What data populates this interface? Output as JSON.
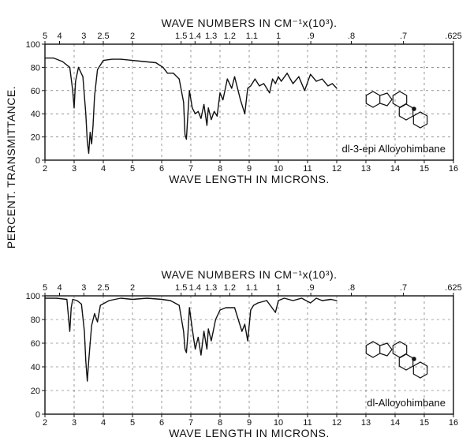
{
  "shared_ylabel": "PERCENT. TRANSMITTANCE.",
  "chart_data": [
    {
      "type": "line",
      "title": "WAVE NUMBERS IN CM⁻¹x(10³).",
      "xlabel": "WAVE LENGTH IN MICRONS.",
      "ylabel": "PERCENT. TRANSMITTANCE.",
      "xlim": [
        2,
        16
      ],
      "ylim": [
        0,
        100
      ],
      "grid": true,
      "x_ticks": [
        "2",
        "3",
        "4",
        "5",
        "6",
        "7",
        "8",
        "9",
        "10",
        "11",
        "12",
        "13",
        "14",
        "15",
        "16"
      ],
      "y_ticks": [
        "0",
        "20",
        "40",
        "60",
        "80",
        "100"
      ],
      "top_axis_ticks": [
        {
          "label": "5",
          "micron": 2.0
        },
        {
          "label": "4",
          "micron": 2.5
        },
        {
          "label": "3",
          "micron": 3.333
        },
        {
          "label": "2.5",
          "micron": 4.0
        },
        {
          "label": "2",
          "micron": 5.0
        },
        {
          "label": "1.5",
          "micron": 6.667
        },
        {
          "label": "1.4",
          "micron": 7.143
        },
        {
          "label": "1.3",
          "micron": 7.692
        },
        {
          "label": "1.2",
          "micron": 8.333
        },
        {
          "label": "1.1",
          "micron": 9.091
        },
        {
          "label": "1",
          "micron": 10.0
        },
        {
          "label": ".9",
          "micron": 11.111
        },
        {
          "label": ".8",
          "micron": 12.5
        },
        {
          "label": ".7",
          "micron": 14.286
        },
        {
          "label": ".625",
          "micron": 16.0
        }
      ],
      "compound_label": "dl-3-epi Alloyohimbane",
      "series": [
        {
          "x": [
            2.0,
            2.3,
            2.6,
            2.85,
            2.95,
            3.0,
            3.05,
            3.15,
            3.3,
            3.4,
            3.45,
            3.5,
            3.55,
            3.6,
            3.65,
            3.7,
            3.8,
            4.0,
            4.3,
            4.6,
            5.0,
            5.4,
            5.8,
            6.05,
            6.2,
            6.4,
            6.6,
            6.75,
            6.8,
            6.85,
            6.9,
            6.95,
            7.05,
            7.15,
            7.25,
            7.35,
            7.45,
            7.55,
            7.6,
            7.7,
            7.8,
            7.9,
            8.0,
            8.1,
            8.25,
            8.4,
            8.5,
            8.7,
            8.85,
            8.95,
            9.05,
            9.2,
            9.35,
            9.5,
            9.7,
            9.8,
            9.9,
            10.0,
            10.1,
            10.3,
            10.5,
            10.7,
            10.9,
            11.1,
            11.3,
            11.5,
            11.7,
            11.85,
            12.0
          ],
          "y": [
            88,
            88,
            85,
            80,
            60,
            45,
            68,
            80,
            72,
            40,
            16,
            6,
            24,
            14,
            30,
            55,
            78,
            86,
            87,
            87,
            86,
            85,
            84,
            80,
            75,
            75,
            70,
            50,
            22,
            18,
            40,
            60,
            45,
            40,
            42,
            36,
            48,
            30,
            45,
            35,
            42,
            38,
            58,
            52,
            70,
            62,
            72,
            52,
            40,
            62,
            64,
            70,
            64,
            66,
            58,
            70,
            66,
            72,
            68,
            75,
            66,
            72,
            60,
            74,
            68,
            70,
            64,
            66,
            62
          ]
        }
      ]
    },
    {
      "type": "line",
      "title": "WAVE NUMBERS IN CM⁻¹x(10³).",
      "xlabel": "WAVE LENGTH IN MICRONS.",
      "ylabel": "PERCENT. TRANSMITTANCE.",
      "xlim": [
        2,
        16
      ],
      "ylim": [
        0,
        100
      ],
      "grid": true,
      "x_ticks": [
        "2",
        "3",
        "4",
        "5",
        "6",
        "7",
        "8",
        "9",
        "10",
        "11",
        "12",
        "13",
        "14",
        "15",
        "16"
      ],
      "y_ticks": [
        "0",
        "20",
        "40",
        "60",
        "80",
        "100"
      ],
      "top_axis_ticks": [
        {
          "label": "5",
          "micron": 2.0
        },
        {
          "label": "4",
          "micron": 2.5
        },
        {
          "label": "3",
          "micron": 3.333
        },
        {
          "label": "2.5",
          "micron": 4.0
        },
        {
          "label": "2",
          "micron": 5.0
        },
        {
          "label": "1.5",
          "micron": 6.667
        },
        {
          "label": "1.4",
          "micron": 7.143
        },
        {
          "label": "1.3",
          "micron": 7.692
        },
        {
          "label": "1.2",
          "micron": 8.333
        },
        {
          "label": "1.1",
          "micron": 9.091
        },
        {
          "label": "1",
          "micron": 10.0
        },
        {
          "label": ".9",
          "micron": 11.111
        },
        {
          "label": ".8",
          "micron": 12.5
        },
        {
          "label": ".7",
          "micron": 14.286
        },
        {
          "label": ".625",
          "micron": 16.0
        }
      ],
      "compound_label": "dl-Alloyohimbane",
      "series": [
        {
          "x": [
            2.0,
            2.4,
            2.75,
            2.85,
            2.9,
            2.95,
            3.1,
            3.25,
            3.35,
            3.4,
            3.45,
            3.5,
            3.55,
            3.6,
            3.7,
            3.8,
            3.9,
            4.2,
            4.6,
            5.0,
            5.5,
            6.0,
            6.3,
            6.6,
            6.75,
            6.8,
            6.85,
            6.9,
            6.95,
            7.05,
            7.15,
            7.25,
            7.35,
            7.45,
            7.55,
            7.6,
            7.7,
            7.85,
            8.0,
            8.2,
            8.5,
            8.75,
            8.85,
            8.95,
            9.05,
            9.15,
            9.3,
            9.6,
            9.9,
            10.0,
            10.2,
            10.5,
            10.8,
            11.1,
            11.3,
            11.5,
            11.8,
            12.0
          ],
          "y": [
            98,
            98,
            97,
            70,
            90,
            97,
            96,
            93,
            70,
            45,
            28,
            45,
            60,
            75,
            85,
            78,
            92,
            96,
            98,
            97,
            98,
            97,
            96,
            92,
            70,
            55,
            52,
            68,
            90,
            72,
            55,
            65,
            50,
            70,
            55,
            72,
            62,
            80,
            88,
            90,
            90,
            70,
            76,
            62,
            88,
            92,
            94,
            96,
            86,
            96,
            98,
            96,
            98,
            94,
            98,
            96,
            97,
            96
          ]
        }
      ]
    }
  ]
}
